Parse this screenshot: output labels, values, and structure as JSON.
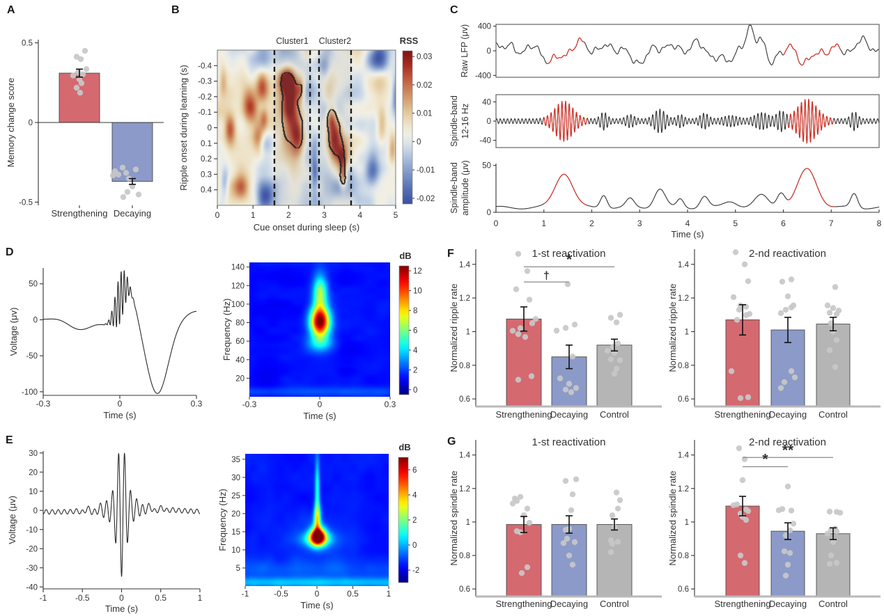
{
  "figure": {
    "panels": {
      "a": "A",
      "b": "B",
      "c": "C",
      "d": "D",
      "e": "E",
      "f": "F",
      "g": "G"
    }
  },
  "colors": {
    "strengthening": "#d4696f",
    "decaying": "#8b9ac8",
    "control": "#b5b5b5",
    "dot": "#c8c8c8",
    "error": "#111111",
    "sig": "#e84150",
    "trace_black": "#2b2b2b",
    "trace_red": "#d93226",
    "axis": "#333333"
  },
  "chart_data": [
    {
      "id": "A",
      "type": "bar",
      "title": "",
      "ylabel": "Memory change score",
      "ylim": [
        -0.52,
        0.52
      ],
      "yticks": [
        -0.5,
        0,
        0.5
      ],
      "categories": [
        "Strengthening",
        "Decaying"
      ],
      "values": [
        0.31,
        -0.37
      ],
      "errors": [
        0.025,
        0.018
      ],
      "colors": [
        "strengthening",
        "decaying"
      ],
      "points": [
        [
          [
            8,
            0.45
          ],
          [
            -4,
            0.413
          ],
          [
            2,
            0.398
          ],
          [
            10,
            0.335
          ],
          [
            -2,
            0.315
          ],
          [
            5,
            0.302
          ],
          [
            -9,
            0.295
          ],
          [
            0,
            0.272
          ],
          [
            3,
            0.247
          ],
          [
            -4,
            0.218
          ],
          [
            1,
            0.187
          ]
        ],
        [
          [
            -14,
            -0.283
          ],
          [
            5,
            -0.295
          ],
          [
            -25,
            -0.306
          ],
          [
            -9,
            -0.316
          ],
          [
            -20,
            -0.327
          ],
          [
            -28,
            -0.333
          ],
          [
            -5,
            -0.352
          ],
          [
            0,
            -0.401
          ],
          [
            -7,
            -0.436
          ],
          [
            9,
            -0.452
          ],
          [
            -13,
            -0.468
          ]
        ]
      ]
    },
    {
      "id": "B",
      "type": "heatmap",
      "xlabel": "Cue onset during sleep (s)",
      "ylabel": "Ripple onset during learning (s)",
      "xlim": [
        0,
        5
      ],
      "xticks": [
        0,
        1,
        2,
        3,
        4,
        5
      ],
      "ylim": [
        -0.5,
        0.5
      ],
      "yticks": [
        -0.4,
        -0.3,
        -0.2,
        -0.1,
        0,
        0.1,
        0.2,
        0.3,
        0.4
      ],
      "colorbar": {
        "label": "RSS",
        "range": [
          -0.022,
          0.032
        ],
        "ticks": [
          0.03,
          0.02,
          0.01,
          0,
          -0.01,
          -0.02
        ]
      },
      "clusters": [
        {
          "label": "Cluster1",
          "from": 1.6,
          "to": 2.6,
          "center": {
            "x": 2.05,
            "y": -0.1
          }
        },
        {
          "label": "Cluster2",
          "from": 2.85,
          "to": 3.75,
          "center": {
            "x": 3.3,
            "y": 0.08
          }
        }
      ]
    },
    {
      "id": "C",
      "type": "line-stack",
      "xlabel": "Time (s)",
      "xlim": [
        0,
        8
      ],
      "xticks": [
        0,
        1,
        2,
        3,
        4,
        5,
        6,
        7,
        8
      ],
      "traces": [
        {
          "ylabel": [
            "Raw LFP (μv)"
          ],
          "ylim": [
            -430,
            430
          ],
          "yticks": [
            400,
            0,
            -400
          ],
          "highlight_intervals": [
            [
              1.05,
              1.85
            ],
            [
              6.0,
              7.2
            ]
          ]
        },
        {
          "ylabel": [
            "Spindle-band",
            "12-16 Hz"
          ],
          "ylim": [
            -55,
            55
          ],
          "yticks": [
            40,
            0,
            -40
          ],
          "highlight_intervals": [
            [
              1.0,
              1.9
            ],
            [
              6.1,
              7.05
            ]
          ]
        },
        {
          "ylabel": [
            "Spindle-band",
            "amplitude (μv)"
          ],
          "ylim": [
            0,
            52
          ],
          "yticks": [
            50,
            0
          ],
          "highlight_intervals": [
            [
              1.0,
              1.9
            ],
            [
              6.1,
              7.05
            ]
          ]
        }
      ]
    },
    {
      "id": "Dw",
      "type": "line",
      "waveform": "ripple",
      "xlabel": "Time (s)",
      "ylabel": "Voltage (μv)",
      "xlim": [
        -0.3,
        0.3
      ],
      "xticks": [
        -0.3,
        0,
        0.3
      ],
      "ylim": [
        -105,
        72
      ],
      "yticks": [
        50,
        0,
        -50,
        -100
      ]
    },
    {
      "id": "Ds",
      "type": "spectrogram",
      "xlabel": "Time (s)",
      "ylabel": "Frequency (Hz)",
      "xlim": [
        -0.3,
        0.3
      ],
      "xticks": [
        -0.3,
        0,
        0.3
      ],
      "ylim": [
        0,
        145
      ],
      "yticks": [
        20,
        40,
        60,
        80,
        100,
        120,
        140
      ],
      "colorbar": {
        "label": "dB",
        "range": [
          -0.5,
          12.5
        ],
        "ticks": [
          12,
          10,
          8,
          6,
          4,
          2,
          0
        ]
      },
      "peak": {
        "t": 0,
        "f": 81
      }
    },
    {
      "id": "Ew",
      "type": "line",
      "waveform": "spindle",
      "xlabel": "Time (s)",
      "ylabel": "Voltage (μv)",
      "xlim": [
        -1,
        1
      ],
      "xticks": [
        -1,
        -0.5,
        0,
        0.5,
        1
      ],
      "ylim": [
        -41,
        31
      ],
      "yticks": [
        30,
        20,
        10,
        0,
        -10,
        -20,
        -30,
        -40
      ]
    },
    {
      "id": "Es",
      "type": "spectrogram",
      "xlabel": "Time (s)",
      "ylabel": "Frequency (Hz)",
      "xlim": [
        -1,
        1
      ],
      "xticks": [
        -1,
        -0.5,
        0,
        0.5,
        1
      ],
      "ylim": [
        0,
        36.5
      ],
      "yticks": [
        5,
        10,
        15,
        20,
        25,
        30,
        35
      ],
      "colorbar": {
        "label": "dB",
        "range": [
          -3,
          7
        ],
        "ticks": [
          6,
          4,
          2,
          0,
          -2
        ]
      },
      "peak": {
        "t": 0,
        "f": 14
      }
    },
    {
      "id": "F1",
      "type": "bar",
      "title": "1-st reactivation",
      "ylabel": "Normalized ripple rate",
      "ylim": [
        0.555,
        1.49
      ],
      "yticks": [
        0.6,
        0.8,
        1,
        1.2,
        1.4
      ],
      "categories": [
        "Strengthening",
        "Decaying",
        "Control"
      ],
      "values": [
        1.075,
        0.85,
        0.92
      ],
      "errors": [
        0.072,
        0.07,
        0.035
      ],
      "colors": [
        "strengthening",
        "decaying",
        "control"
      ],
      "points": [
        [
          [
            -8,
            1.462
          ],
          [
            5,
            1.36
          ],
          [
            -11,
            1.252
          ],
          [
            8,
            1.19
          ],
          [
            17,
            1.075
          ],
          [
            12,
            1.05
          ],
          [
            -5,
            1.02
          ],
          [
            -16,
            1.005
          ],
          [
            -8,
            0.985
          ],
          [
            2,
            0.968
          ],
          [
            11,
            0.735
          ],
          [
            -8,
            0.714
          ]
        ],
        [
          [
            -2,
            1.282
          ],
          [
            8,
            1.042
          ],
          [
            -5,
            1.022
          ],
          [
            -18,
            1.006
          ],
          [
            5,
            0.852
          ],
          [
            -13,
            0.722
          ],
          [
            0,
            0.69
          ],
          [
            10,
            0.665
          ],
          [
            -5,
            0.655
          ],
          [
            3,
            0.64
          ]
        ],
        [
          [
            8,
            1.1
          ],
          [
            -5,
            1.082
          ],
          [
            3,
            1.055
          ],
          [
            5,
            0.93
          ],
          [
            -2,
            0.91
          ],
          [
            -10,
            0.886
          ],
          [
            0,
            0.875
          ],
          [
            -5,
            0.835
          ],
          [
            8,
            0.83
          ],
          [
            3,
            0.78
          ],
          [
            0,
            0.75
          ]
        ]
      ],
      "sig": [
        {
          "from": 0,
          "to": 2,
          "level": 1.385,
          "symbol": "*"
        },
        {
          "from": 0,
          "to": 1,
          "level": 1.295,
          "symbol": "†"
        }
      ]
    },
    {
      "id": "F2",
      "type": "bar",
      "title": "2-nd reactivation",
      "ylabel": "Normalized ripple rate",
      "ylim": [
        0.555,
        1.49
      ],
      "yticks": [
        0.6,
        0.8,
        1,
        1.2,
        1.4
      ],
      "categories": [
        "Strengthening",
        "Decaying",
        "Control"
      ],
      "values": [
        1.07,
        1.01,
        1.045
      ],
      "errors": [
        0.09,
        0.075,
        0.04
      ],
      "colors": [
        "strengthening",
        "decaying",
        "control"
      ],
      "points": [
        [
          [
            -10,
            1.472
          ],
          [
            3,
            1.4
          ],
          [
            8,
            1.3
          ],
          [
            -13,
            1.205
          ],
          [
            -3,
            1.155
          ],
          [
            5,
            1.148
          ],
          [
            -5,
            1.13
          ],
          [
            10,
            1.105
          ],
          [
            5,
            1.098
          ],
          [
            -8,
            1.07
          ],
          [
            -16,
            0.765
          ],
          [
            -3,
            0.605
          ],
          [
            8,
            0.61
          ]
        ],
        [
          [
            5,
            1.31
          ],
          [
            -8,
            1.297
          ],
          [
            0,
            1.21
          ],
          [
            8,
            1.156
          ],
          [
            5,
            1.144
          ],
          [
            -3,
            1.13
          ],
          [
            -10,
            1.11
          ],
          [
            5,
            0.765
          ],
          [
            10,
            0.728
          ],
          [
            -5,
            0.7
          ],
          [
            -10,
            0.665
          ]
        ],
        [
          [
            3,
            1.265
          ],
          [
            -8,
            1.156
          ],
          [
            0,
            1.14
          ],
          [
            8,
            1.125
          ],
          [
            -5,
            1.112
          ],
          [
            5,
            1.104
          ],
          [
            -3,
            1.05
          ],
          [
            0,
            1.0
          ],
          [
            5,
            0.95
          ],
          [
            -5,
            0.89
          ],
          [
            3,
            0.79
          ]
        ]
      ],
      "sig": []
    },
    {
      "id": "G1",
      "type": "bar",
      "title": "1-st reactivation",
      "ylabel": "Normalized spindle rate",
      "ylim": [
        0.555,
        1.49
      ],
      "yticks": [
        0.6,
        0.8,
        1,
        1.2,
        1.4
      ],
      "categories": [
        "Strengthening",
        "Decaying",
        "Control"
      ],
      "values": [
        0.985,
        0.985,
        0.985
      ],
      "errors": [
        0.048,
        0.052,
        0.033
      ],
      "colors": [
        "strengthening",
        "decaying",
        "control"
      ],
      "points": [
        [
          [
            -5,
            1.15
          ],
          [
            -13,
            1.14
          ],
          [
            -10,
            1.126
          ],
          [
            -16,
            1.11
          ],
          [
            5,
            1.08
          ],
          [
            0,
            1.04
          ],
          [
            8,
            0.995
          ],
          [
            -10,
            0.945
          ],
          [
            -5,
            0.938
          ],
          [
            5,
            0.73
          ],
          [
            -3,
            0.695
          ]
        ],
        [
          [
            10,
            1.255
          ],
          [
            -5,
            1.245
          ],
          [
            5,
            1.165
          ],
          [
            3,
            1.07
          ],
          [
            0,
            0.96
          ],
          [
            -5,
            0.953
          ],
          [
            -3,
            0.9
          ],
          [
            8,
            0.88
          ],
          [
            -8,
            0.874
          ],
          [
            0,
            0.8
          ],
          [
            5,
            0.745
          ]
        ],
        [
          [
            3,
            1.176
          ],
          [
            8,
            1.13
          ],
          [
            5,
            1.08
          ],
          [
            -3,
            1.04
          ],
          [
            0,
            0.97
          ],
          [
            -5,
            0.89
          ],
          [
            5,
            0.882
          ],
          [
            -3,
            0.87
          ],
          [
            -5,
            0.82
          ]
        ]
      ],
      "sig": []
    },
    {
      "id": "G2",
      "type": "bar",
      "title": "2-nd reactivation",
      "ylabel": "Normalized spindle rate",
      "ylim": [
        0.555,
        1.49
      ],
      "yticks": [
        0.6,
        0.8,
        1,
        1.2,
        1.4
      ],
      "categories": [
        "Strengthening",
        "Decaying",
        "Control"
      ],
      "values": [
        1.095,
        0.945,
        0.93
      ],
      "errors": [
        0.058,
        0.05,
        0.035
      ],
      "colors": [
        "strengthening",
        "decaying",
        "control"
      ],
      "points": [
        [
          [
            -5,
            1.44
          ],
          [
            3,
            1.375
          ],
          [
            0,
            1.25
          ],
          [
            -8,
            1.105
          ],
          [
            -13,
            1.1
          ],
          [
            5,
            1.075
          ],
          [
            8,
            1.065
          ],
          [
            -3,
            1.05
          ],
          [
            0,
            1.03
          ],
          [
            5,
            1.012
          ],
          [
            -3,
            0.8
          ],
          [
            3,
            0.755
          ]
        ],
        [
          [
            0,
            1.212
          ],
          [
            -8,
            1.077
          ],
          [
            -13,
            1.07
          ],
          [
            5,
            1.068
          ],
          [
            8,
            0.99
          ],
          [
            3,
            0.95
          ],
          [
            -3,
            0.92
          ],
          [
            -5,
            0.825
          ],
          [
            3,
            0.815
          ],
          [
            0,
            0.745
          ],
          [
            -3,
            0.68
          ]
        ],
        [
          [
            -5,
            1.062
          ],
          [
            5,
            1.06
          ],
          [
            10,
            1.055
          ],
          [
            3,
            0.96
          ],
          [
            -3,
            0.952
          ],
          [
            5,
            0.944
          ],
          [
            -8,
            0.93
          ],
          [
            0,
            0.88
          ],
          [
            -3,
            0.8
          ],
          [
            5,
            0.756
          ],
          [
            -5,
            0.75
          ]
        ]
      ],
      "sig": [
        {
          "from": 0,
          "to": 2,
          "level": 1.385,
          "symbol": "**"
        },
        {
          "from": 0,
          "to": 1,
          "level": 1.33,
          "symbol": "*"
        }
      ]
    }
  ]
}
